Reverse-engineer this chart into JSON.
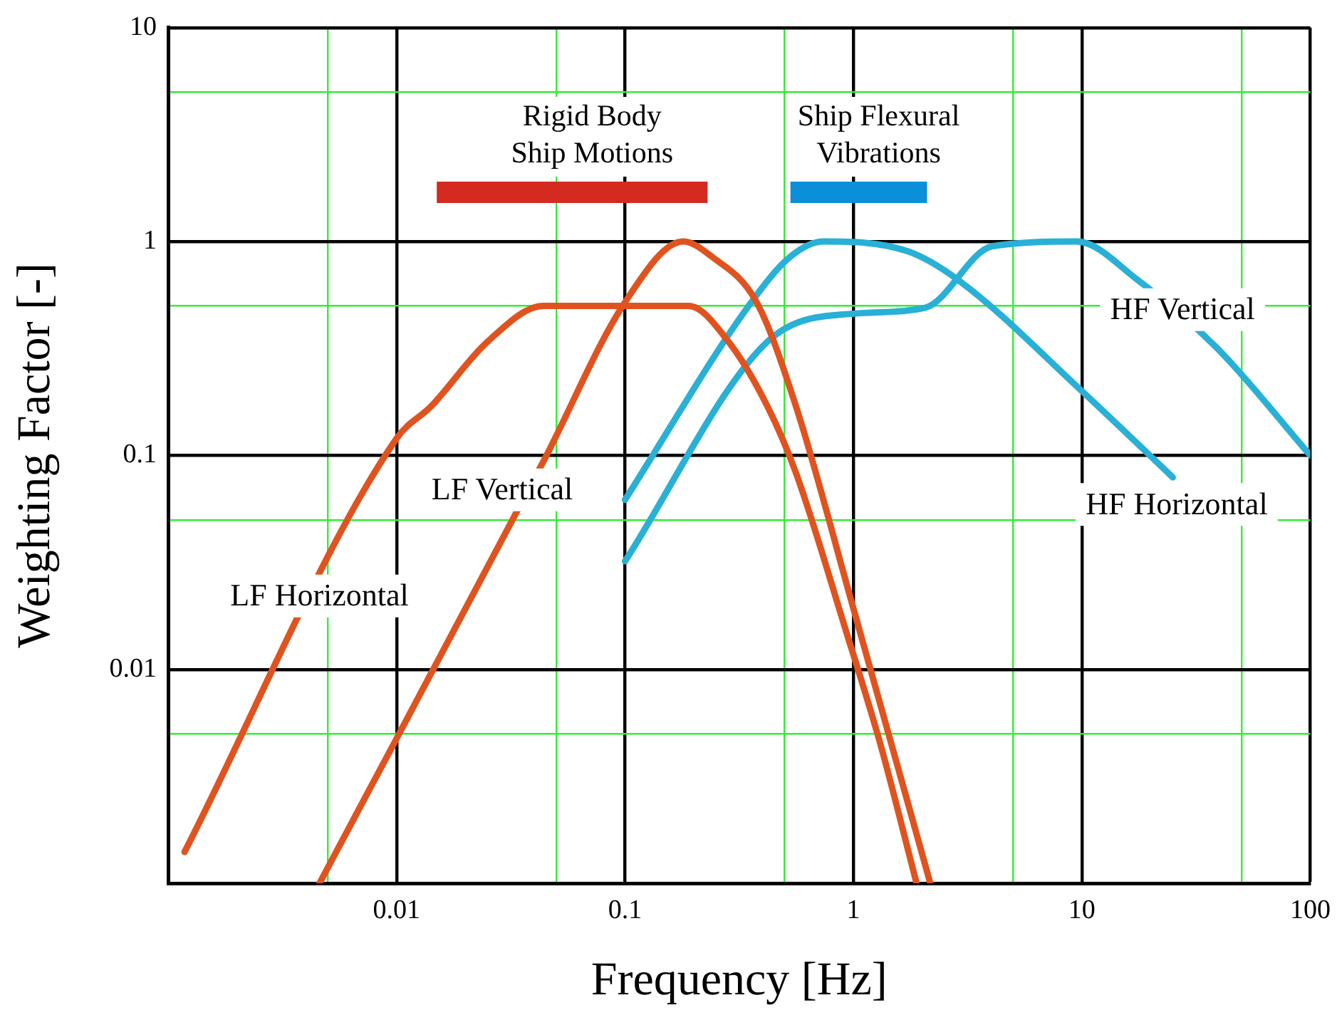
{
  "chart_data": {
    "type": "line",
    "xlabel": "Frequency [Hz]",
    "ylabel": "Weighting Factor [-]",
    "log": "xy",
    "grid": true,
    "legend": false,
    "marker": "none",
    "line_style": "solid",
    "xlim": [
      0.001,
      100
    ],
    "ylim": [
      0.001,
      10
    ],
    "xticks": [
      {
        "value": 0.001,
        "label": null
      },
      {
        "value": 0.005,
        "label": null
      },
      0.01,
      {
        "value": 0.05,
        "label": null
      },
      0.1,
      {
        "value": 0.5,
        "label": null
      },
      1,
      {
        "value": 5,
        "label": null
      },
      10,
      {
        "value": 50,
        "label": null
      },
      100
    ],
    "yticks": [
      {
        "value": 0.001,
        "label": null
      },
      {
        "value": 0.005,
        "label": null
      },
      0.01,
      {
        "value": 0.05,
        "label": null
      },
      0.1,
      {
        "value": 0.5,
        "label": null
      },
      1,
      {
        "value": 5,
        "label": null
      },
      10
    ],
    "series": [
      {
        "name": "LF Horizontal",
        "color": "#e0531f",
        "x": [
          0.00118,
          0.01,
          0.0142,
          0.025,
          0.044,
          0.19,
          0.284,
          0.42,
          0.56,
          0.93,
          1.31,
          1.89
        ],
        "values": [
          0.0014,
          0.12,
          0.17,
          0.34,
          0.5,
          0.5,
          0.34,
          0.17,
          0.083,
          0.015,
          0.0045,
          0.001
        ]
      },
      {
        "name": "LF Vertical",
        "color": "#e0531f",
        "x": [
          0.0046,
          0.044,
          0.1,
          0.18,
          0.24,
          0.377,
          0.56,
          0.99,
          2.17
        ],
        "values": [
          0.001,
          0.094,
          0.52,
          1,
          0.85,
          0.52,
          0.17,
          0.02,
          0.001
        ]
      },
      {
        "name": "HF Horizontal",
        "color": "#29b0d6",
        "x": [
          0.1,
          0.357,
          0.53,
          0.74,
          1.73,
          2.88,
          10,
          25
        ],
        "values": [
          0.062,
          0.52,
          0.85,
          1,
          0.9,
          0.66,
          0.2,
          0.079
        ]
      },
      {
        "name": "HF Vertical",
        "color": "#29b0d6",
        "x": [
          0.1,
          0.42,
          1,
          2.06,
          4.05,
          9.5,
          17.6,
          38.8,
          100
        ],
        "values": [
          0.032,
          0.34,
          0.46,
          0.49,
          0.95,
          1,
          0.66,
          0.32,
          0.1
        ]
      },
      {
        "name": "Rigid Body\nShip Motions",
        "color": "#d42a20",
        "x": [
          0.015,
          0.23
        ],
        "values": [
          1.7,
          1.7
        ]
      },
      {
        "name": "Ship Flexural\nVibrations",
        "color": "#0a8fd8",
        "x": [
          0.53,
          2.1
        ],
        "values": [
          1.7,
          1.7
        ]
      }
    ]
  }
}
